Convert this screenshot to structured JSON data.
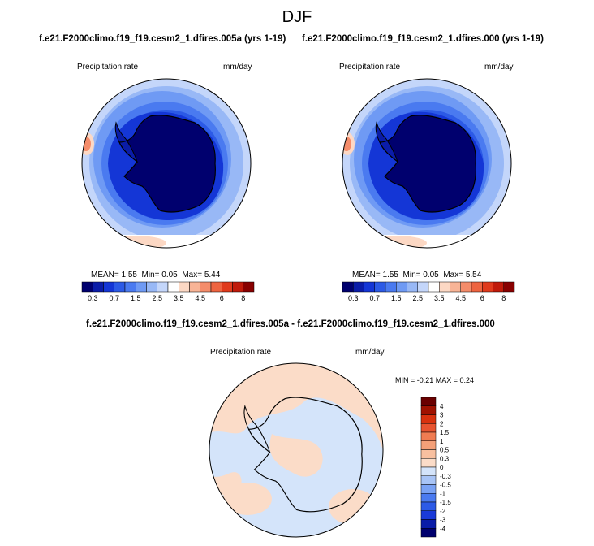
{
  "season": "DJF",
  "panels": [
    {
      "case": "f.e21.F2000climo.f19_f19.cesm2_1.dfires.005a (yrs 1-19)",
      "variable": "Precipitation rate",
      "units": "mm/day",
      "stats": {
        "mean_label": "MEAN=",
        "mean": "1.55",
        "min_label": "Min=",
        "min": "0.05",
        "max_label": "Max=",
        "max": "5.44"
      }
    },
    {
      "case": "f.e21.F2000climo.f19_f19.cesm2_1.dfires.000 (yrs 1-19)",
      "variable": "Precipitation rate",
      "units": "mm/day",
      "stats": {
        "mean_label": "MEAN=",
        "mean": "1.55",
        "min_label": "Min=",
        "min": "0.05",
        "max_label": "Max=",
        "max": "5.54"
      }
    }
  ],
  "diff": {
    "title": "f.e21.F2000climo.f19_f19.cesm2_1.dfires.005a - f.e21.F2000climo.f19_f19.cesm2_1.dfires.000",
    "variable": "Precipitation rate",
    "units": "mm/day",
    "minmax_text": "MIN = -0.21 MAX = 0.24"
  },
  "colorbar_main": {
    "colors": [
      "#00006e",
      "#0a1ca8",
      "#1436d6",
      "#2c5ae6",
      "#4a7af0",
      "#6f9af4",
      "#98b8f6",
      "#c4d6fa",
      "#ffffff",
      "#fcd8c4",
      "#f8b496",
      "#f48c6a",
      "#ee6440",
      "#e03a1c",
      "#c01a0a",
      "#880000"
    ],
    "tick_labels": [
      "0.3",
      "0.7",
      "1.5",
      "2.5",
      "3.5",
      "4.5",
      "6",
      "8"
    ]
  },
  "colorbar_diff": {
    "colors": [
      "#00006e",
      "#0a1ca8",
      "#1a3ad8",
      "#2c5ae6",
      "#4a7af0",
      "#7aa2f4",
      "#a8c4f6",
      "#d4e4fa",
      "#fbdcc8",
      "#f8c0a0",
      "#f4a078",
      "#f07c52",
      "#e85430",
      "#d8320e",
      "#a01200",
      "#6a0000"
    ],
    "tick_labels": [
      "4",
      "3",
      "2",
      "1.5",
      "1",
      "0.5",
      "0.3",
      "0",
      "-0.3",
      "-0.5",
      "-1",
      "-1.5",
      "-2",
      "-3",
      "-4"
    ]
  },
  "chart_data": [
    {
      "type": "heatmap",
      "projection": "polar stereographic (south pole)",
      "variable": "Precipitation rate",
      "units": "mm/day",
      "mean": 1.55,
      "min": 0.05,
      "max": 5.44,
      "contour_levels": [
        0.3,
        0.7,
        1.5,
        2.5,
        3.5,
        4.5,
        6,
        8
      ]
    },
    {
      "type": "heatmap",
      "projection": "polar stereographic (south pole)",
      "variable": "Precipitation rate",
      "units": "mm/day",
      "mean": 1.55,
      "min": 0.05,
      "max": 5.54,
      "contour_levels": [
        0.3,
        0.7,
        1.5,
        2.5,
        3.5,
        4.5,
        6,
        8
      ]
    },
    {
      "type": "heatmap",
      "projection": "polar stereographic (south pole)",
      "variable": "Precipitation rate",
      "units": "mm/day",
      "min": -0.21,
      "max": 0.24,
      "contour_levels": [
        -4,
        -3,
        -2,
        -1.5,
        -1,
        -0.5,
        -0.3,
        0,
        0.3,
        0.5,
        1,
        1.5,
        2,
        3,
        4
      ]
    }
  ]
}
